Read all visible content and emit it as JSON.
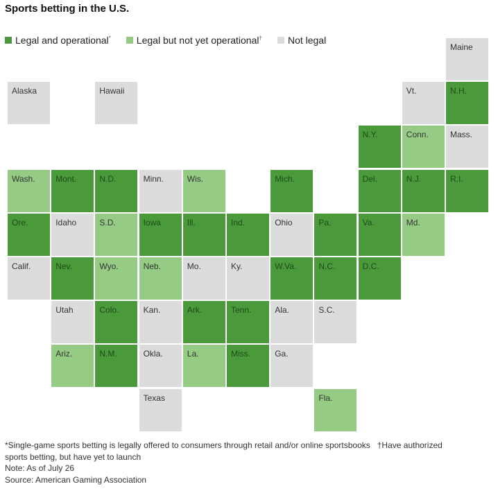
{
  "title": "Sports betting in the U.S.",
  "legend": [
    {
      "key": "operational",
      "label": "Legal and operational",
      "mark": "*",
      "color": "#4a9a3c"
    },
    {
      "key": "pending",
      "label": "Legal but not yet operational",
      "mark": "†",
      "color": "#95cb85"
    },
    {
      "key": "not_legal",
      "label": "Not legal",
      "mark": "",
      "color": "#dcdcdd"
    }
  ],
  "chart_data": {
    "type": "heatmap",
    "title": "Sports betting in the U.S.",
    "grid": "tile map, columns 0-10, rows 0-8",
    "categories": [
      "operational",
      "pending",
      "not_legal"
    ],
    "states": [
      {
        "label": "Maine",
        "col": 10,
        "row": 0,
        "status": "not_legal"
      },
      {
        "label": "Alaska",
        "col": 0,
        "row": 1,
        "status": "not_legal"
      },
      {
        "label": "Hawaii",
        "col": 2,
        "row": 1,
        "status": "not_legal"
      },
      {
        "label": "Vt.",
        "col": 9,
        "row": 1,
        "status": "not_legal"
      },
      {
        "label": "N.H.",
        "col": 10,
        "row": 1,
        "status": "operational"
      },
      {
        "label": "N.Y.",
        "col": 8,
        "row": 2,
        "status": "operational"
      },
      {
        "label": "Conn.",
        "col": 9,
        "row": 2,
        "status": "pending"
      },
      {
        "label": "Mass.",
        "col": 10,
        "row": 2,
        "status": "not_legal"
      },
      {
        "label": "Wash.",
        "col": 0,
        "row": 3,
        "status": "pending"
      },
      {
        "label": "Mont.",
        "col": 1,
        "row": 3,
        "status": "operational"
      },
      {
        "label": "N.D.",
        "col": 2,
        "row": 3,
        "status": "operational"
      },
      {
        "label": "Minn.",
        "col": 3,
        "row": 3,
        "status": "not_legal"
      },
      {
        "label": "Wis.",
        "col": 4,
        "row": 3,
        "status": "pending"
      },
      {
        "label": "Mich.",
        "col": 6,
        "row": 3,
        "status": "operational"
      },
      {
        "label": "Del.",
        "col": 8,
        "row": 3,
        "status": "operational"
      },
      {
        "label": "N.J.",
        "col": 9,
        "row": 3,
        "status": "operational"
      },
      {
        "label": "R.I.",
        "col": 10,
        "row": 3,
        "status": "operational"
      },
      {
        "label": "Ore.",
        "col": 0,
        "row": 4,
        "status": "operational"
      },
      {
        "label": "Idaho",
        "col": 1,
        "row": 4,
        "status": "not_legal"
      },
      {
        "label": "S.D.",
        "col": 2,
        "row": 4,
        "status": "pending"
      },
      {
        "label": "Iowa",
        "col": 3,
        "row": 4,
        "status": "operational"
      },
      {
        "label": "Ill.",
        "col": 4,
        "row": 4,
        "status": "operational"
      },
      {
        "label": "Ind.",
        "col": 5,
        "row": 4,
        "status": "operational"
      },
      {
        "label": "Ohio",
        "col": 6,
        "row": 4,
        "status": "not_legal"
      },
      {
        "label": "Pa.",
        "col": 7,
        "row": 4,
        "status": "operational"
      },
      {
        "label": "Va.",
        "col": 8,
        "row": 4,
        "status": "operational"
      },
      {
        "label": "Md.",
        "col": 9,
        "row": 4,
        "status": "pending"
      },
      {
        "label": "Calif.",
        "col": 0,
        "row": 5,
        "status": "not_legal"
      },
      {
        "label": "Nev.",
        "col": 1,
        "row": 5,
        "status": "operational"
      },
      {
        "label": "Wyo.",
        "col": 2,
        "row": 5,
        "status": "pending"
      },
      {
        "label": "Neb.",
        "col": 3,
        "row": 5,
        "status": "pending"
      },
      {
        "label": "Mo.",
        "col": 4,
        "row": 5,
        "status": "not_legal"
      },
      {
        "label": "Ky.",
        "col": 5,
        "row": 5,
        "status": "not_legal"
      },
      {
        "label": "W.Va.",
        "col": 6,
        "row": 5,
        "status": "operational"
      },
      {
        "label": "N.C.",
        "col": 7,
        "row": 5,
        "status": "operational"
      },
      {
        "label": "D.C.",
        "col": 8,
        "row": 5,
        "status": "operational"
      },
      {
        "label": "Utah",
        "col": 1,
        "row": 6,
        "status": "not_legal"
      },
      {
        "label": "Colo.",
        "col": 2,
        "row": 6,
        "status": "operational"
      },
      {
        "label": "Kan.",
        "col": 3,
        "row": 6,
        "status": "not_legal"
      },
      {
        "label": "Ark.",
        "col": 4,
        "row": 6,
        "status": "operational"
      },
      {
        "label": "Tenn.",
        "col": 5,
        "row": 6,
        "status": "operational"
      },
      {
        "label": "Ala.",
        "col": 6,
        "row": 6,
        "status": "not_legal"
      },
      {
        "label": "S.C.",
        "col": 7,
        "row": 6,
        "status": "not_legal"
      },
      {
        "label": "Ariz.",
        "col": 1,
        "row": 7,
        "status": "pending"
      },
      {
        "label": "N.M.",
        "col": 2,
        "row": 7,
        "status": "operational"
      },
      {
        "label": "Okla.",
        "col": 3,
        "row": 7,
        "status": "not_legal"
      },
      {
        "label": "La.",
        "col": 4,
        "row": 7,
        "status": "pending"
      },
      {
        "label": "Miss.",
        "col": 5,
        "row": 7,
        "status": "operational"
      },
      {
        "label": "Ga.",
        "col": 6,
        "row": 7,
        "status": "not_legal"
      },
      {
        "label": "Texas",
        "col": 3,
        "row": 8,
        "status": "not_legal"
      },
      {
        "label": "Fla.",
        "col": 7,
        "row": 8,
        "status": "pending"
      }
    ]
  },
  "footnotes": {
    "line1": "*Single-game sports betting is legally offered to consumers through retail and/or online sportsbooks   †Have authorized",
    "line2": "sports betting, but have yet to launch",
    "note": "Note: As of July 26",
    "source": "Source: American Gaming Association"
  }
}
